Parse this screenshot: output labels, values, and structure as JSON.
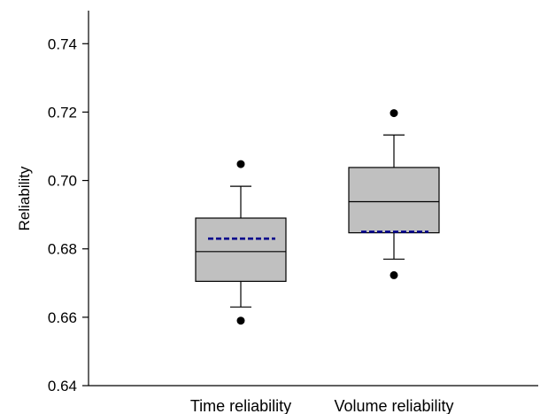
{
  "chart_data": {
    "type": "box",
    "title": "",
    "ylabel": "Reliability",
    "xlabel": "",
    "ylim": [
      0.64,
      0.75
    ],
    "yticks": [
      0.64,
      0.66,
      0.68,
      0.7,
      0.72,
      0.74
    ],
    "ytick_labels": [
      "0.64",
      "0.66",
      "0.68",
      "0.70",
      "0.72",
      "0.74"
    ],
    "categories": [
      "Time reliability",
      "Volume reliability"
    ],
    "series": [
      {
        "category": "Time reliability",
        "whisker_low": 0.663,
        "q1": 0.6705,
        "median": 0.6792,
        "mean": 0.683,
        "q3": 0.689,
        "whisker_high": 0.6983,
        "outliers": [
          0.659,
          0.7048
        ]
      },
      {
        "category": "Volume reliability",
        "whisker_low": 0.677,
        "q1": 0.6847,
        "median": 0.6938,
        "mean": 0.685,
        "q3": 0.7038,
        "whisker_high": 0.7133,
        "outliers": [
          0.6723,
          0.7197
        ]
      }
    ],
    "colors": {
      "box_fill": "#c0c0c0",
      "box_stroke": "#000000",
      "mean_line": "#00008b",
      "outlier": "#000000"
    },
    "grid": false,
    "legend": "none"
  }
}
